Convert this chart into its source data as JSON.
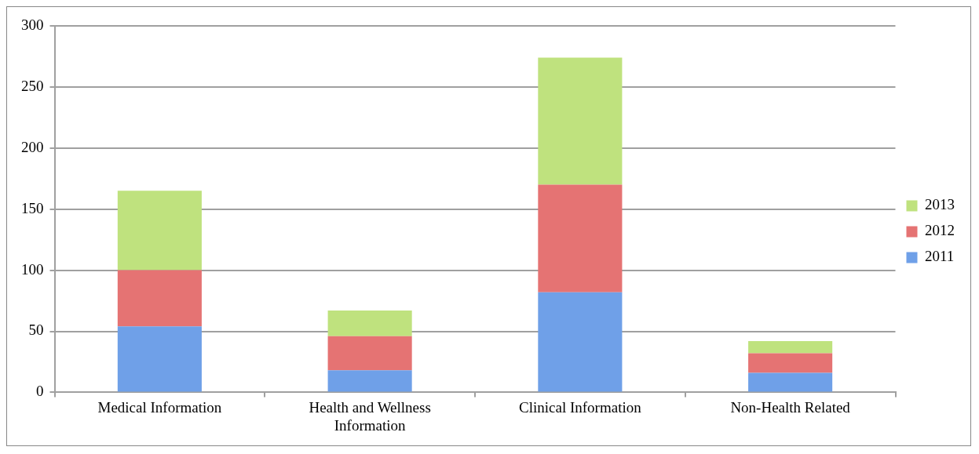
{
  "chart_data": {
    "type": "bar",
    "stacked": true,
    "categories": [
      "Medical Information",
      "Health and Wellness Information",
      "Clinical Information",
      "Non-Health Related"
    ],
    "series": [
      {
        "name": "2011",
        "color": "#6fa0e8",
        "values": [
          54,
          18,
          82,
          16
        ]
      },
      {
        "name": "2012",
        "color": "#e57373",
        "values": [
          46,
          28,
          88,
          16
        ]
      },
      {
        "name": "2013",
        "color": "#bfe27e",
        "values": [
          65,
          21,
          104,
          10
        ]
      }
    ],
    "ylim": [
      0,
      300
    ],
    "yticks": [
      0,
      50,
      100,
      150,
      200,
      250,
      300
    ],
    "grid": "y",
    "legend": "right"
  }
}
